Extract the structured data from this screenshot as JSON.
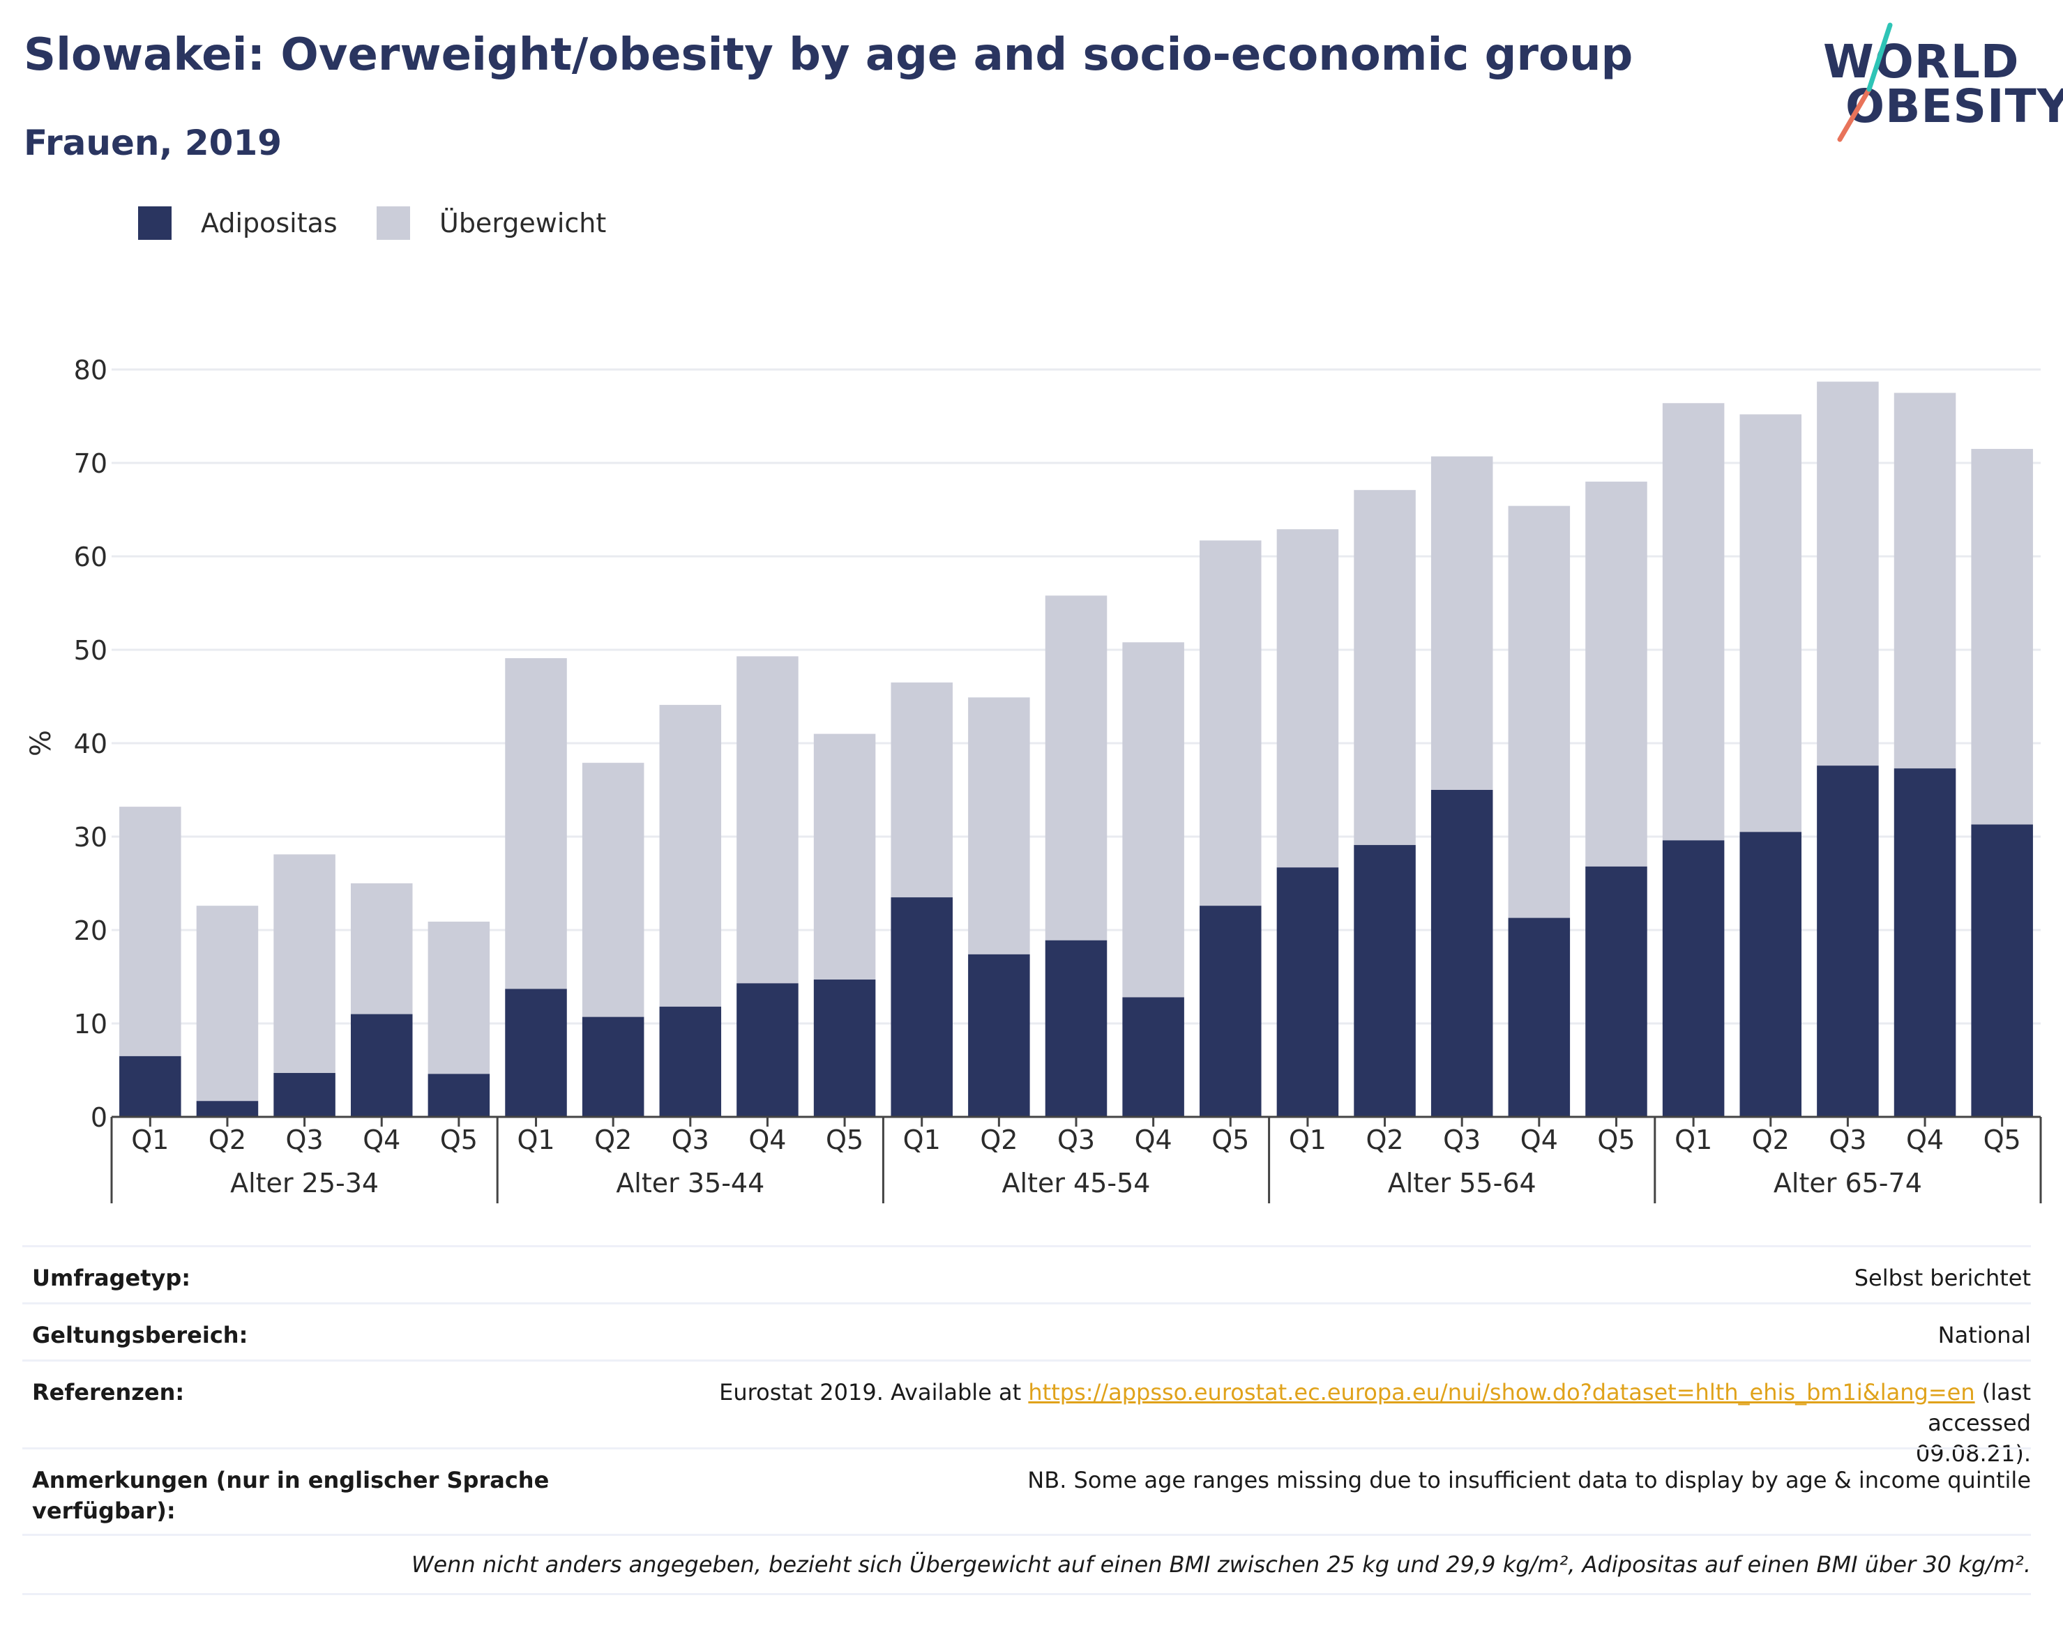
{
  "title": "Slowakei: Overweight/obesity by age and socio-economic group",
  "subtitle": "Frauen, 2019",
  "logo": {
    "line1": "WORLD",
    "line2": "OBESITY",
    "accent_teal": "#2ec4b6",
    "accent_coral": "#e8735a"
  },
  "legend": [
    {
      "label": "Adipositas",
      "color": "#2a3560"
    },
    {
      "label": "Übergewicht",
      "color": "#cbcdd9"
    }
  ],
  "chart_data": {
    "type": "bar",
    "stacked": true,
    "ylabel": "%",
    "ylim": [
      0,
      80
    ],
    "yticks": [
      0,
      10,
      20,
      30,
      40,
      50,
      60,
      70,
      80
    ],
    "grid": true,
    "legend_position": "top-left",
    "quintile_labels": [
      "Q1",
      "Q2",
      "Q3",
      "Q4",
      "Q5"
    ],
    "groups": [
      {
        "label": "Alter 25-34",
        "obesity": [
          6.5,
          1.7,
          4.7,
          11.0,
          4.6
        ],
        "total": [
          33.2,
          22.6,
          28.1,
          25.0,
          20.9
        ]
      },
      {
        "label": "Alter 35-44",
        "obesity": [
          13.7,
          10.7,
          11.8,
          14.3,
          14.7
        ],
        "total": [
          49.1,
          37.9,
          44.1,
          49.3,
          41.0
        ]
      },
      {
        "label": "Alter 45-54",
        "obesity": [
          23.5,
          17.4,
          18.9,
          12.8,
          22.6
        ],
        "total": [
          46.5,
          44.9,
          55.8,
          50.8,
          61.7
        ]
      },
      {
        "label": "Alter 55-64",
        "obesity": [
          26.7,
          29.1,
          35.0,
          21.3,
          26.8
        ],
        "total": [
          62.9,
          67.1,
          70.7,
          65.4,
          68.0
        ]
      },
      {
        "label": "Alter 65-74",
        "obesity": [
          29.6,
          30.5,
          37.6,
          37.3,
          31.3
        ],
        "total": [
          76.4,
          75.2,
          78.7,
          77.5,
          71.5
        ]
      }
    ],
    "series_colors": {
      "obesity": "#2a3560",
      "overweight": "#cbcdd9"
    }
  },
  "info": [
    {
      "key": "Umfragetyp:",
      "value": "Selbst berichtet"
    },
    {
      "key": "Geltungsbereich:",
      "value": "National"
    },
    {
      "key": "Referenzen:",
      "value_prefix": "Eurostat 2019. Available at ",
      "link": "https://appsso.eurostat.ec.europa.eu/nui/show.do?dataset=hlth_ehis_bm1i&lang=en",
      "value_suffix": " (last accessed",
      "value_suffix2": "09.08.21)."
    },
    {
      "key": "Anmerkungen (nur in englischer Sprache verfügbar):",
      "value": "NB. Some age ranges missing due to insufficient data to display by age & income quintile"
    }
  ],
  "footnote": "Wenn nicht anders angegeben, bezieht sich Übergewicht auf einen BMI zwischen 25 kg und 29,9 kg/m², Adipositas auf einen BMI über 30 kg/m²."
}
